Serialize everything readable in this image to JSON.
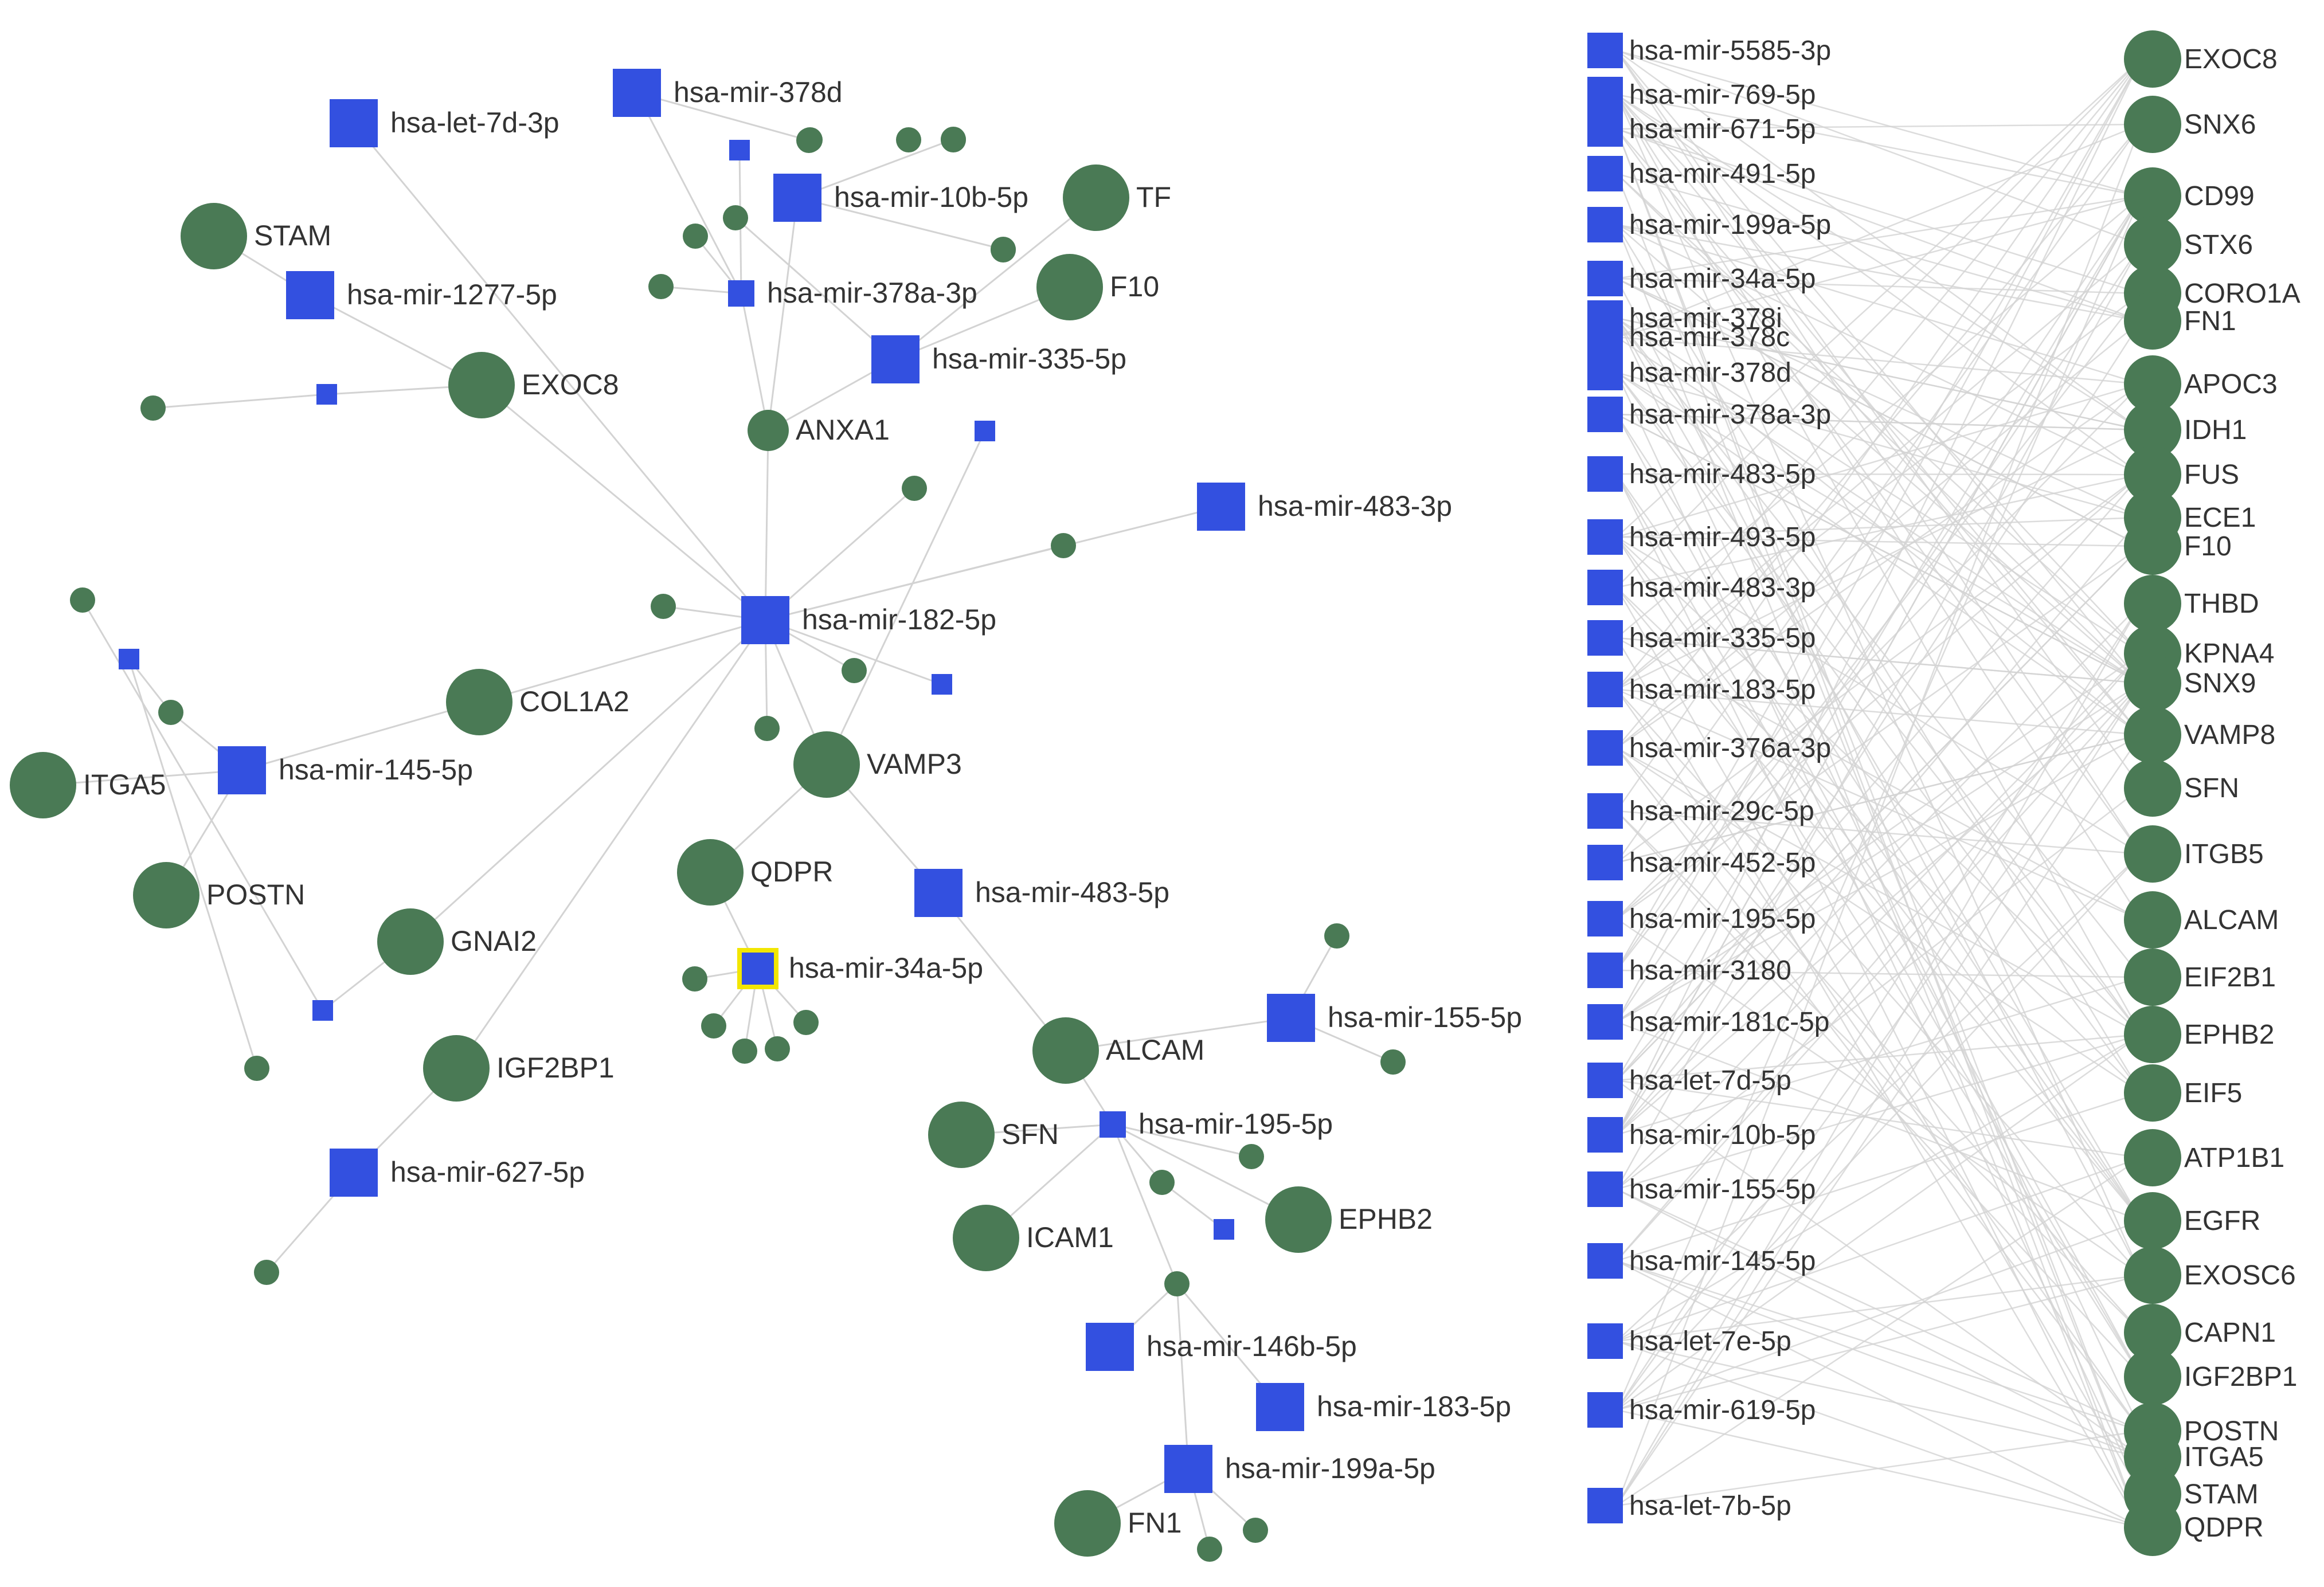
{
  "colors": {
    "mirna": "#3350e0",
    "gene": "#4a7a55",
    "edge": "#d3d3d3",
    "highlight": "#f2e600",
    "label": "#333333"
  },
  "network": {
    "nodes": [
      {
        "id": "m182",
        "type": "mirna",
        "label": "hsa-mir-182-5p",
        "size": "large"
      },
      {
        "id": "mlet7d3p",
        "type": "mirna",
        "label": "hsa-let-7d-3p",
        "size": "large"
      },
      {
        "id": "m378d",
        "type": "mirna",
        "label": "hsa-mir-378d",
        "size": "large"
      },
      {
        "id": "m10b",
        "type": "mirna",
        "label": "hsa-mir-10b-5p",
        "size": "large"
      },
      {
        "id": "m378a",
        "type": "mirna",
        "label": "hsa-mir-378a-3p",
        "size": "small"
      },
      {
        "id": "m335",
        "type": "mirna",
        "label": "hsa-mir-335-5p",
        "size": "large"
      },
      {
        "id": "m1277",
        "type": "mirna",
        "label": "hsa-mir-1277-5p",
        "size": "large"
      },
      {
        "id": "m483_3p",
        "type": "mirna",
        "label": "hsa-mir-483-3p",
        "size": "large"
      },
      {
        "id": "m145",
        "type": "mirna",
        "label": "hsa-mir-145-5p",
        "size": "large"
      },
      {
        "id": "m483_5p",
        "type": "mirna",
        "label": "hsa-mir-483-5p",
        "size": "large"
      },
      {
        "id": "m34a",
        "type": "mirna",
        "label": "hsa-mir-34a-5p",
        "size": "medium",
        "highlight": true
      },
      {
        "id": "m155",
        "type": "mirna",
        "label": "hsa-mir-155-5p",
        "size": "large"
      },
      {
        "id": "m195",
        "type": "mirna",
        "label": "hsa-mir-195-5p",
        "size": "small"
      },
      {
        "id": "m627",
        "type": "mirna",
        "label": "hsa-mir-627-5p",
        "size": "large"
      },
      {
        "id": "m146b",
        "type": "mirna",
        "label": "hsa-mir-146b-5p",
        "size": "large"
      },
      {
        "id": "m183",
        "type": "mirna",
        "label": "hsa-mir-183-5p",
        "size": "large"
      },
      {
        "id": "m199a",
        "type": "mirna",
        "label": "hsa-mir-199a-5p",
        "size": "large"
      },
      {
        "id": "gSTAM",
        "type": "gene",
        "label": "STAM",
        "size": "large"
      },
      {
        "id": "gEXOC8",
        "type": "gene",
        "label": "EXOC8",
        "size": "large"
      },
      {
        "id": "gTF",
        "type": "gene",
        "label": "TF",
        "size": "large"
      },
      {
        "id": "gF10",
        "type": "gene",
        "label": "F10",
        "size": "large"
      },
      {
        "id": "gANXA1",
        "type": "gene",
        "label": "ANXA1",
        "size": "medium"
      },
      {
        "id": "gCOL1A2",
        "type": "gene",
        "label": "COL1A2",
        "size": "large"
      },
      {
        "id": "gITGA5",
        "type": "gene",
        "label": "ITGA5",
        "size": "large"
      },
      {
        "id": "gPOSTN",
        "type": "gene",
        "label": "POSTN",
        "size": "large"
      },
      {
        "id": "gVAMP3",
        "type": "gene",
        "label": "VAMP3",
        "size": "large"
      },
      {
        "id": "gQDPR",
        "type": "gene",
        "label": "QDPR",
        "size": "large"
      },
      {
        "id": "gGNAI2",
        "type": "gene",
        "label": "GNAI2",
        "size": "large"
      },
      {
        "id": "gIGF2BP1",
        "type": "gene",
        "label": "IGF2BP1",
        "size": "large"
      },
      {
        "id": "gALCAM",
        "type": "gene",
        "label": "ALCAM",
        "size": "large"
      },
      {
        "id": "gSFN",
        "type": "gene",
        "label": "SFN",
        "size": "large"
      },
      {
        "id": "gICAM1",
        "type": "gene",
        "label": "ICAM1",
        "size": "large"
      },
      {
        "id": "gEPHB2",
        "type": "gene",
        "label": "EPHB2",
        "size": "large"
      },
      {
        "id": "gFN1",
        "type": "gene",
        "label": "FN1",
        "size": "large"
      },
      {
        "id": "s1",
        "type": "gene",
        "label": "",
        "size": "small"
      },
      {
        "id": "s2",
        "type": "gene",
        "label": "",
        "size": "small"
      },
      {
        "id": "s3",
        "type": "gene",
        "label": "",
        "size": "small"
      },
      {
        "id": "s4",
        "type": "gene",
        "label": "",
        "size": "small"
      },
      {
        "id": "s5",
        "type": "gene",
        "label": "",
        "size": "small"
      },
      {
        "id": "s6",
        "type": "gene",
        "label": "",
        "size": "small"
      },
      {
        "id": "s7",
        "type": "gene",
        "label": "",
        "size": "small"
      },
      {
        "id": "s8",
        "type": "gene",
        "label": "",
        "size": "small"
      },
      {
        "id": "s9",
        "type": "gene",
        "label": "",
        "size": "small"
      },
      {
        "id": "s10",
        "type": "gene",
        "label": "",
        "size": "small"
      },
      {
        "id": "s11",
        "type": "gene",
        "label": "",
        "size": "small"
      },
      {
        "id": "s12",
        "type": "gene",
        "label": "",
        "size": "small"
      },
      {
        "id": "s13",
        "type": "gene",
        "label": "",
        "size": "small"
      },
      {
        "id": "s14",
        "type": "gene",
        "label": "",
        "size": "small"
      },
      {
        "id": "s15",
        "type": "gene",
        "label": "",
        "size": "small"
      },
      {
        "id": "s16",
        "type": "gene",
        "label": "",
        "size": "small"
      },
      {
        "id": "s17",
        "type": "gene",
        "label": "",
        "size": "small"
      },
      {
        "id": "s18",
        "type": "gene",
        "label": "",
        "size": "small"
      },
      {
        "id": "s19",
        "type": "gene",
        "label": "",
        "size": "small"
      },
      {
        "id": "s20",
        "type": "gene",
        "label": "",
        "size": "small"
      },
      {
        "id": "s21",
        "type": "gene",
        "label": "",
        "size": "small"
      },
      {
        "id": "s22",
        "type": "gene",
        "label": "",
        "size": "small"
      },
      {
        "id": "s23",
        "type": "gene",
        "label": "",
        "size": "small"
      },
      {
        "id": "s24",
        "type": "gene",
        "label": "",
        "size": "small"
      },
      {
        "id": "s25",
        "type": "gene",
        "label": "",
        "size": "small"
      },
      {
        "id": "s26",
        "type": "gene",
        "label": "",
        "size": "small"
      },
      {
        "id": "s27",
        "type": "gene",
        "label": "",
        "size": "small"
      },
      {
        "id": "s28",
        "type": "gene",
        "label": "",
        "size": "small"
      },
      {
        "id": "s29",
        "type": "gene",
        "label": "",
        "size": "small"
      },
      {
        "id": "s30",
        "type": "gene",
        "label": "",
        "size": "small"
      },
      {
        "id": "s31",
        "type": "gene",
        "label": "",
        "size": "small"
      },
      {
        "id": "s32",
        "type": "gene",
        "label": "",
        "size": "small"
      },
      {
        "id": "q1",
        "type": "mirna",
        "label": "",
        "size": "tiny"
      },
      {
        "id": "q2",
        "type": "mirna",
        "label": "",
        "size": "tiny"
      },
      {
        "id": "q3",
        "type": "mirna",
        "label": "",
        "size": "tiny"
      },
      {
        "id": "q4",
        "type": "mirna",
        "label": "",
        "size": "tiny"
      },
      {
        "id": "q5",
        "type": "mirna",
        "label": "",
        "size": "tiny"
      },
      {
        "id": "q6",
        "type": "mirna",
        "label": "",
        "size": "tiny"
      },
      {
        "id": "q7",
        "type": "mirna",
        "label": "",
        "size": "tiny"
      }
    ],
    "edges": [
      [
        "m182",
        "mlet7d3p"
      ],
      [
        "m182",
        "gEXOC8"
      ],
      [
        "m182",
        "gANXA1"
      ],
      [
        "m182",
        "m483_3p"
      ],
      [
        "m182",
        "gCOL1A2"
      ],
      [
        "m182",
        "gVAMP3"
      ],
      [
        "m182",
        "gGNAI2"
      ],
      [
        "m182",
        "s4"
      ],
      [
        "m182",
        "s5"
      ],
      [
        "m182",
        "s6"
      ],
      [
        "m182",
        "s7"
      ],
      [
        "m182",
        "q1"
      ],
      [
        "m182",
        "s8"
      ],
      [
        "gANXA1",
        "m378a"
      ],
      [
        "gANXA1",
        "m335"
      ],
      [
        "gANXA1",
        "m10b"
      ],
      [
        "m378a",
        "m378d"
      ],
      [
        "m378a",
        "s9"
      ],
      [
        "m378a",
        "s10"
      ],
      [
        "m378a",
        "q2"
      ],
      [
        "m10b",
        "s11"
      ],
      [
        "m10b",
        "s12"
      ],
      [
        "m378d",
        "s13"
      ],
      [
        "m335",
        "gTF"
      ],
      [
        "m335",
        "gF10"
      ],
      [
        "m335",
        "s14"
      ],
      [
        "gEXOC8",
        "m1277"
      ],
      [
        "gEXOC8",
        "q3"
      ],
      [
        "q3",
        "s1"
      ],
      [
        "m1277",
        "gSTAM"
      ],
      [
        "gCOL1A2",
        "m145"
      ],
      [
        "m145",
        "gITGA5"
      ],
      [
        "m145",
        "gPOSTN"
      ],
      [
        "m145",
        "s2"
      ],
      [
        "s2",
        "q4"
      ],
      [
        "q4",
        "s3"
      ],
      [
        "gVAMP3",
        "q5"
      ],
      [
        "gVAMP3",
        "gQDPR"
      ],
      [
        "gVAMP3",
        "m483_5p"
      ],
      [
        "m483_5p",
        "gALCAM"
      ],
      [
        "gALCAM",
        "m155"
      ],
      [
        "gALCAM",
        "m195"
      ],
      [
        "m155",
        "s15"
      ],
      [
        "m155",
        "s16"
      ],
      [
        "m195",
        "gSFN"
      ],
      [
        "m195",
        "gICAM1"
      ],
      [
        "m195",
        "gEPHB2"
      ],
      [
        "m195",
        "s17"
      ],
      [
        "m195",
        "s18"
      ],
      [
        "m195",
        "s19"
      ],
      [
        "s18",
        "q6"
      ],
      [
        "s19",
        "m146b"
      ],
      [
        "s19",
        "m183"
      ],
      [
        "s19",
        "m199a"
      ],
      [
        "m199a",
        "gFN1"
      ],
      [
        "m199a",
        "s20"
      ],
      [
        "m199a",
        "s21"
      ],
      [
        "m34a",
        "s22"
      ],
      [
        "m34a",
        "s23"
      ],
      [
        "m34a",
        "s24"
      ],
      [
        "m34a",
        "s25"
      ],
      [
        "m34a",
        "s26"
      ],
      [
        "m34a",
        "gQDPR"
      ],
      [
        "gGNAI2",
        "q7"
      ],
      [
        "q7",
        "s27"
      ],
      [
        "gIGF2BP1",
        "m627"
      ],
      [
        "m627",
        "s28"
      ],
      [
        "m182",
        "gIGF2BP1"
      ]
    ]
  },
  "bipartite": {
    "mirnas": [
      "hsa-mir-5585-3p",
      "hsa-mir-769-5p",
      "hsa-mir-671-5p",
      "hsa-mir-491-5p",
      "hsa-mir-199a-5p",
      "hsa-mir-34a-5p",
      "hsa-mir-378i",
      "hsa-mir-378c",
      "hsa-mir-378d",
      "hsa-mir-378a-3p",
      "hsa-mir-483-5p",
      "hsa-mir-493-5p",
      "hsa-mir-483-3p",
      "hsa-mir-335-5p",
      "hsa-mir-183-5p",
      "hsa-mir-376a-3p",
      "hsa-mir-29c-5p",
      "hsa-mir-452-5p",
      "hsa-mir-195-5p",
      "hsa-mir-3180",
      "hsa-mir-181c-5p",
      "hsa-let-7d-5p",
      "hsa-mir-10b-5p",
      "hsa-mir-155-5p",
      "hsa-mir-145-5p",
      "hsa-let-7e-5p",
      "hsa-mir-619-5p",
      "hsa-let-7b-5p"
    ],
    "genes": [
      "EXOC8",
      "SNX6",
      "CD99",
      "STX6",
      "CORO1A",
      "FN1",
      "APOC3",
      "IDH1",
      "FUS",
      "ECE1",
      "F10",
      "THBD",
      "KPNA4",
      "SNX9",
      "VAMP8",
      "SFN",
      "ITGB5",
      "ALCAM",
      "EIF2B1",
      "EPHB2",
      "EIF5",
      "ATP1B1",
      "EGFR",
      "EXOSC6",
      "CAPN1",
      "IGF2BP1",
      "POSTN",
      "ITGA5",
      "STAM",
      "QDPR"
    ]
  }
}
